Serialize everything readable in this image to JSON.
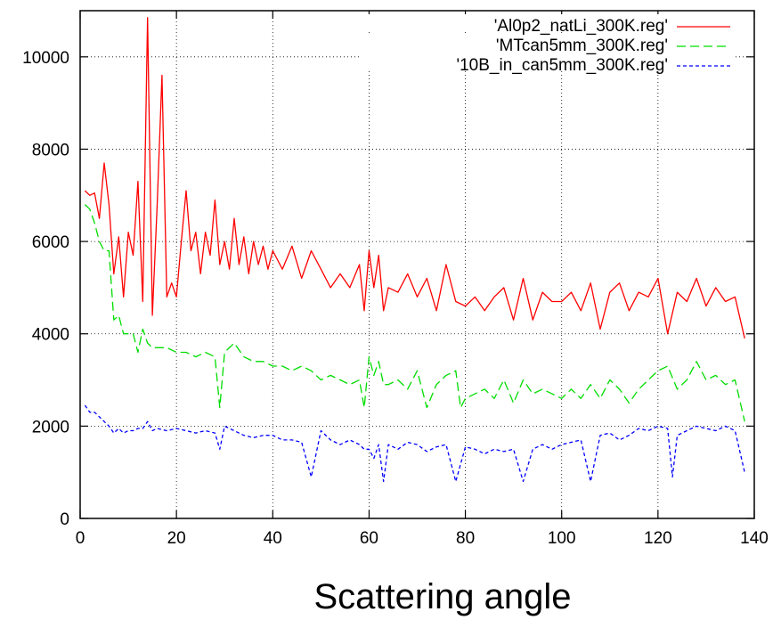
{
  "chart_data": {
    "type": "line",
    "title": "",
    "xlabel": "Scattering angle",
    "ylabel": "",
    "xlim": [
      0,
      140
    ],
    "ylim": [
      0,
      11000
    ],
    "x_ticks": [
      0,
      20,
      40,
      60,
      80,
      100,
      120,
      140
    ],
    "y_ticks": [
      0,
      2000,
      4000,
      6000,
      8000,
      10000
    ],
    "x_tick_labels": [
      "0",
      "20",
      "40",
      "60",
      "80",
      "100",
      "120",
      "140"
    ],
    "y_tick_labels": [
      "0",
      "2000",
      "4000",
      "6000",
      "8000",
      "10000"
    ],
    "grid": true,
    "legend_position": "top-right",
    "series": [
      {
        "name": "'Al0p2_natLi_300K.reg'",
        "color": "#ff0000",
        "dash": "solid",
        "points": [
          [
            1,
            7100
          ],
          [
            2,
            7000
          ],
          [
            3,
            7050
          ],
          [
            4,
            6500
          ],
          [
            5,
            7700
          ],
          [
            6,
            6800
          ],
          [
            7,
            5300
          ],
          [
            8,
            6100
          ],
          [
            9,
            4800
          ],
          [
            10,
            6200
          ],
          [
            11,
            5700
          ],
          [
            12,
            7300
          ],
          [
            13,
            4700
          ],
          [
            14,
            10850
          ],
          [
            15,
            4400
          ],
          [
            16,
            6800
          ],
          [
            17,
            9600
          ],
          [
            18,
            4800
          ],
          [
            19,
            5100
          ],
          [
            20,
            4800
          ],
          [
            21,
            6000
          ],
          [
            22,
            7100
          ],
          [
            23,
            5800
          ],
          [
            24,
            6200
          ],
          [
            25,
            5300
          ],
          [
            26,
            6200
          ],
          [
            27,
            5700
          ],
          [
            28,
            6900
          ],
          [
            29,
            5500
          ],
          [
            30,
            6000
          ],
          [
            31,
            5400
          ],
          [
            32,
            6500
          ],
          [
            33,
            5500
          ],
          [
            34,
            6100
          ],
          [
            35,
            5300
          ],
          [
            36,
            6000
          ],
          [
            37,
            5500
          ],
          [
            38,
            5900
          ],
          [
            39,
            5400
          ],
          [
            40,
            5800
          ],
          [
            42,
            5400
          ],
          [
            44,
            5900
          ],
          [
            46,
            5200
          ],
          [
            48,
            5800
          ],
          [
            50,
            5400
          ],
          [
            52,
            5000
          ],
          [
            54,
            5300
          ],
          [
            56,
            5000
          ],
          [
            58,
            5500
          ],
          [
            59,
            4500
          ],
          [
            60,
            5800
          ],
          [
            61,
            5000
          ],
          [
            62,
            5700
          ],
          [
            63,
            4500
          ],
          [
            64,
            5000
          ],
          [
            66,
            4900
          ],
          [
            68,
            5300
          ],
          [
            70,
            4800
          ],
          [
            72,
            5200
          ],
          [
            74,
            4500
          ],
          [
            76,
            5500
          ],
          [
            78,
            4700
          ],
          [
            80,
            4600
          ],
          [
            82,
            4800
          ],
          [
            84,
            4500
          ],
          [
            86,
            4800
          ],
          [
            88,
            5000
          ],
          [
            90,
            4300
          ],
          [
            92,
            5200
          ],
          [
            94,
            4300
          ],
          [
            96,
            4900
          ],
          [
            98,
            4700
          ],
          [
            100,
            4700
          ],
          [
            102,
            4900
          ],
          [
            104,
            4500
          ],
          [
            106,
            5100
          ],
          [
            108,
            4100
          ],
          [
            110,
            4900
          ],
          [
            112,
            5100
          ],
          [
            114,
            4500
          ],
          [
            116,
            4900
          ],
          [
            118,
            4800
          ],
          [
            120,
            5200
          ],
          [
            122,
            4000
          ],
          [
            124,
            4900
          ],
          [
            126,
            4700
          ],
          [
            128,
            5200
          ],
          [
            130,
            4600
          ],
          [
            132,
            5000
          ],
          [
            134,
            4700
          ],
          [
            136,
            4800
          ],
          [
            138,
            3900
          ]
        ]
      },
      {
        "name": "'MTcan5mm_300K.reg'",
        "color": "#00dd00",
        "dash": "dashed",
        "points": [
          [
            1,
            6800
          ],
          [
            2,
            6700
          ],
          [
            3,
            6400
          ],
          [
            4,
            6000
          ],
          [
            5,
            5800
          ],
          [
            6,
            5800
          ],
          [
            7,
            4300
          ],
          [
            8,
            4400
          ],
          [
            9,
            4000
          ],
          [
            10,
            4000
          ],
          [
            11,
            4000
          ],
          [
            12,
            3600
          ],
          [
            13,
            4100
          ],
          [
            14,
            3800
          ],
          [
            15,
            3700
          ],
          [
            16,
            3700
          ],
          [
            18,
            3700
          ],
          [
            20,
            3600
          ],
          [
            22,
            3600
          ],
          [
            24,
            3500
          ],
          [
            26,
            3600
          ],
          [
            28,
            3500
          ],
          [
            29,
            2400
          ],
          [
            30,
            3600
          ],
          [
            32,
            3800
          ],
          [
            34,
            3500
          ],
          [
            36,
            3400
          ],
          [
            38,
            3400
          ],
          [
            40,
            3300
          ],
          [
            42,
            3300
          ],
          [
            44,
            3200
          ],
          [
            46,
            3300
          ],
          [
            48,
            3200
          ],
          [
            50,
            3000
          ],
          [
            52,
            3100
          ],
          [
            54,
            3000
          ],
          [
            56,
            2900
          ],
          [
            58,
            3000
          ],
          [
            59,
            2400
          ],
          [
            60,
            3500
          ],
          [
            61,
            3100
          ],
          [
            62,
            3400
          ],
          [
            63,
            2900
          ],
          [
            64,
            2900
          ],
          [
            66,
            3000
          ],
          [
            68,
            2800
          ],
          [
            70,
            3200
          ],
          [
            72,
            2400
          ],
          [
            74,
            2900
          ],
          [
            76,
            3100
          ],
          [
            78,
            3200
          ],
          [
            79,
            2400
          ],
          [
            80,
            2600
          ],
          [
            82,
            2700
          ],
          [
            84,
            2800
          ],
          [
            86,
            2600
          ],
          [
            88,
            3000
          ],
          [
            90,
            2500
          ],
          [
            92,
            3000
          ],
          [
            94,
            2700
          ],
          [
            96,
            2800
          ],
          [
            98,
            2700
          ],
          [
            100,
            2600
          ],
          [
            102,
            2800
          ],
          [
            104,
            2600
          ],
          [
            106,
            2900
          ],
          [
            108,
            2600
          ],
          [
            110,
            3000
          ],
          [
            112,
            2800
          ],
          [
            114,
            2500
          ],
          [
            116,
            2800
          ],
          [
            118,
            3000
          ],
          [
            120,
            3200
          ],
          [
            122,
            3300
          ],
          [
            124,
            2800
          ],
          [
            126,
            3000
          ],
          [
            128,
            3400
          ],
          [
            130,
            3000
          ],
          [
            132,
            3100
          ],
          [
            134,
            2900
          ],
          [
            136,
            3000
          ],
          [
            138,
            2100
          ]
        ]
      },
      {
        "name": "'10B_in_can5mm_300K.reg'",
        "color": "#0000ff",
        "dash": "dotted",
        "points": [
          [
            1,
            2450
          ],
          [
            2,
            2300
          ],
          [
            3,
            2300
          ],
          [
            4,
            2200
          ],
          [
            5,
            2100
          ],
          [
            6,
            2000
          ],
          [
            7,
            1850
          ],
          [
            8,
            1950
          ],
          [
            9,
            1850
          ],
          [
            10,
            1900
          ],
          [
            11,
            1900
          ],
          [
            12,
            1950
          ],
          [
            13,
            1950
          ],
          [
            14,
            2100
          ],
          [
            15,
            1900
          ],
          [
            16,
            1950
          ],
          [
            18,
            1900
          ],
          [
            20,
            1950
          ],
          [
            22,
            1900
          ],
          [
            24,
            1850
          ],
          [
            26,
            1900
          ],
          [
            28,
            1850
          ],
          [
            29,
            1500
          ],
          [
            30,
            2000
          ],
          [
            32,
            1900
          ],
          [
            34,
            1800
          ],
          [
            36,
            1750
          ],
          [
            38,
            1800
          ],
          [
            40,
            1800
          ],
          [
            42,
            1700
          ],
          [
            44,
            1700
          ],
          [
            46,
            1650
          ],
          [
            48,
            900
          ],
          [
            50,
            1900
          ],
          [
            52,
            1700
          ],
          [
            54,
            1600
          ],
          [
            56,
            1700
          ],
          [
            58,
            1600
          ],
          [
            59,
            1500
          ],
          [
            60,
            1500
          ],
          [
            61,
            1300
          ],
          [
            62,
            1600
          ],
          [
            63,
            800
          ],
          [
            64,
            1600
          ],
          [
            66,
            1500
          ],
          [
            68,
            1650
          ],
          [
            70,
            1600
          ],
          [
            72,
            1450
          ],
          [
            74,
            1550
          ],
          [
            76,
            1600
          ],
          [
            78,
            800
          ],
          [
            80,
            1550
          ],
          [
            82,
            1500
          ],
          [
            84,
            1400
          ],
          [
            86,
            1500
          ],
          [
            88,
            1450
          ],
          [
            90,
            1500
          ],
          [
            92,
            800
          ],
          [
            94,
            1500
          ],
          [
            96,
            1600
          ],
          [
            98,
            1500
          ],
          [
            100,
            1600
          ],
          [
            102,
            1650
          ],
          [
            104,
            1700
          ],
          [
            106,
            800
          ],
          [
            108,
            1800
          ],
          [
            110,
            1850
          ],
          [
            112,
            1700
          ],
          [
            114,
            1800
          ],
          [
            116,
            1950
          ],
          [
            118,
            1900
          ],
          [
            120,
            2000
          ],
          [
            122,
            1950
          ],
          [
            123,
            900
          ],
          [
            124,
            1800
          ],
          [
            126,
            1900
          ],
          [
            128,
            2000
          ],
          [
            130,
            1950
          ],
          [
            132,
            1900
          ],
          [
            134,
            2000
          ],
          [
            136,
            1900
          ],
          [
            138,
            1000
          ]
        ]
      }
    ]
  }
}
